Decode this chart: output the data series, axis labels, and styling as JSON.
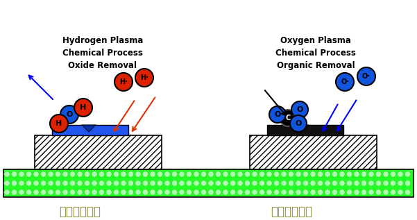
{
  "title_left": "Hydrogen Plasma\nChemical Process\nOxide Removal",
  "title_right": "Oxygen Plasma\nChemical Process\nOrganic Removal",
  "label_left": "化学清洗工艺",
  "label_right": "化学清洗工艺",
  "bg_color": "#ffffff",
  "green_color": "#22ff22",
  "blue_particle_color": "#1155dd",
  "red_particle_color": "#dd2200",
  "black_particle_color": "#111111",
  "blue_block_color": "#2255ee",
  "black_block_color": "#111111",
  "label_color": "#888833",
  "title_fontsize": 8.5,
  "label_fontsize": 12
}
